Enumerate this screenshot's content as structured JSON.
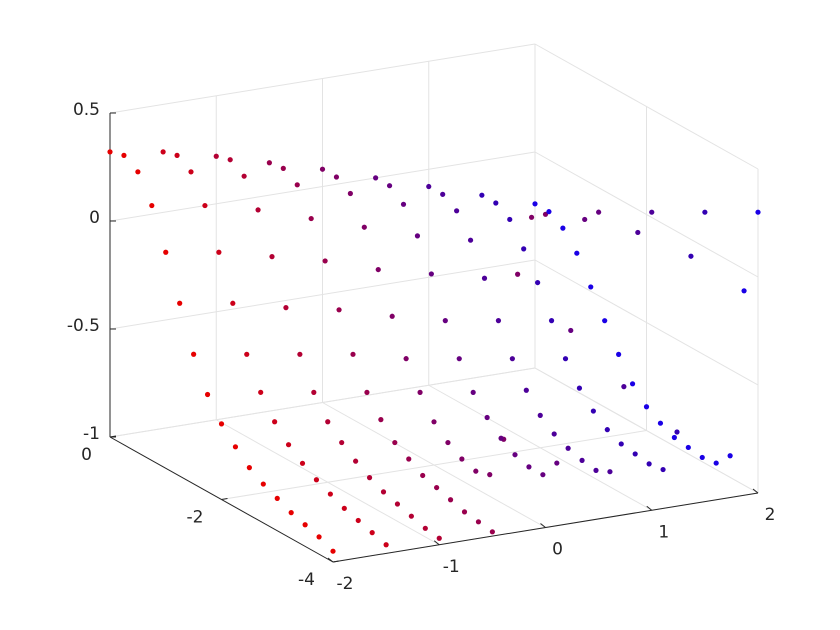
{
  "chart_data": {
    "type": "scatter3d",
    "xlim": [
      -2,
      2
    ],
    "xticks": [
      -2,
      -1,
      0,
      1,
      2
    ],
    "ylim": [
      -4,
      0
    ],
    "yticks": [
      -4,
      -2,
      0
    ],
    "zlim": [
      -1,
      0.5
    ],
    "zticks": [
      -1,
      -0.5,
      0,
      0.5
    ],
    "grid": true,
    "y": [
      0,
      -0.25,
      -0.5,
      -0.75,
      -1,
      -1.25,
      -1.5,
      -1.75,
      -2,
      -2.25,
      -2.5,
      -2.75,
      -3,
      -3.25,
      -3.5,
      -3.75,
      -4
    ],
    "series": [
      {
        "x": -2,
        "color": "#e60000",
        "values": [
          0.32,
          0.34,
          0.3,
          0.18,
          0.0,
          -0.2,
          -0.4,
          -0.55,
          -0.65,
          -0.72,
          -0.78,
          -0.82,
          -0.85,
          -0.88,
          -0.9,
          -0.92,
          -0.95
        ]
      },
      {
        "x": -1.5,
        "color": "#cc001a",
        "values": [
          0.28,
          0.3,
          0.26,
          0.14,
          -0.04,
          -0.24,
          -0.44,
          -0.58,
          -0.68,
          -0.75,
          -0.8,
          -0.84,
          -0.87,
          -0.9,
          -0.92,
          -0.94,
          -0.96
        ]
      },
      {
        "x": -1,
        "color": "#b30033",
        "values": [
          0.22,
          0.24,
          0.2,
          0.08,
          -0.1,
          -0.3,
          -0.48,
          -0.62,
          -0.72,
          -0.78,
          -0.83,
          -0.87,
          -0.9,
          -0.92,
          -0.94,
          -0.96,
          -0.97
        ]
      },
      {
        "x": -0.5,
        "color": "#99004d",
        "values": [
          0.15,
          0.16,
          0.12,
          0.0,
          -0.16,
          -0.35,
          -0.52,
          -0.66,
          -0.75,
          -0.82,
          -0.86,
          -0.9,
          -0.92,
          -0.94,
          -0.96,
          -0.97,
          -0.98
        ]
      },
      {
        "x": 0,
        "color": "#800066",
        "values": [
          0.08,
          0.08,
          0.04,
          -0.08,
          -0.24,
          -0.42,
          -0.58,
          -0.7,
          -0.8,
          -0.86,
          -0.9,
          -0.92,
          -0.9,
          -0.7,
          0.1,
          0.4,
          0.45
        ]
      },
      {
        "x": 0.5,
        "color": "#660080",
        "values": [
          0.0,
          0.0,
          -0.05,
          -0.16,
          -0.3,
          -0.48,
          -0.62,
          -0.74,
          -0.82,
          -0.88,
          -0.92,
          -0.94,
          -0.94,
          -0.85,
          -0.2,
          0.35,
          0.42
        ]
      },
      {
        "x": 1,
        "color": "#4d0099",
        "values": [
          -0.08,
          -0.08,
          -0.12,
          -0.22,
          -0.36,
          -0.52,
          -0.66,
          -0.77,
          -0.85,
          -0.9,
          -0.93,
          -0.95,
          -0.96,
          -0.93,
          -0.5,
          0.25,
          0.38
        ]
      },
      {
        "x": 1.5,
        "color": "#3300b3",
        "values": [
          -0.16,
          -0.16,
          -0.2,
          -0.3,
          -0.42,
          -0.56,
          -0.7,
          -0.8,
          -0.87,
          -0.92,
          -0.95,
          -0.96,
          -0.97,
          -0.96,
          -0.75,
          0.1,
          0.34
        ]
      },
      {
        "x": 2,
        "color": "#1a00e6",
        "values": [
          -0.24,
          -0.24,
          -0.28,
          -0.36,
          -0.48,
          -0.6,
          -0.72,
          -0.82,
          -0.89,
          -0.93,
          -0.96,
          -0.97,
          -0.98,
          -0.97,
          -0.9,
          -0.1,
          0.3
        ]
      }
    ]
  }
}
